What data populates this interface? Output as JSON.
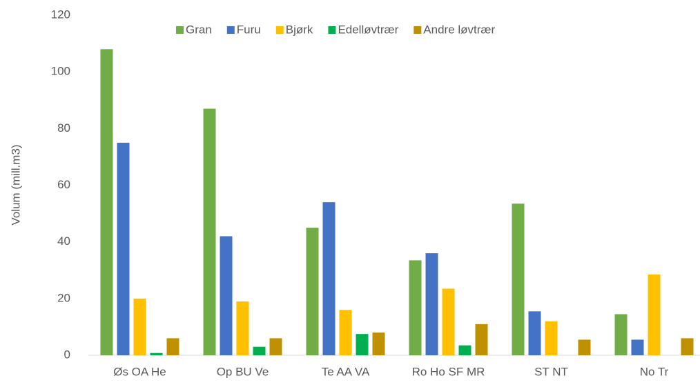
{
  "chart_data": {
    "type": "bar",
    "categories": [
      "Øs OA He",
      "Op BU Ve",
      "Te AA VA",
      "Ro Ho SF MR",
      "ST NT",
      "No Tr"
    ],
    "series": [
      {
        "name": "Gran",
        "color": "#70ad47",
        "values": [
          108,
          87,
          45,
          33.5,
          53.5,
          14.5
        ]
      },
      {
        "name": "Furu",
        "color": "#4472c4",
        "values": [
          75,
          42,
          54,
          36,
          15.5,
          5.5
        ]
      },
      {
        "name": "Bjørk",
        "color": "#ffc000",
        "values": [
          20,
          19,
          16,
          23.5,
          12,
          28.5
        ]
      },
      {
        "name": "Edelløvtrær",
        "color": "#00b050",
        "values": [
          0.8,
          3,
          7.5,
          3.5,
          0,
          0
        ]
      },
      {
        "name": "Andre løvtrær",
        "color": "#bf9000",
        "values": [
          6,
          6,
          8,
          11,
          5.5,
          6
        ]
      }
    ],
    "y_label": "Volum (mill.m3)",
    "ylim": [
      0,
      120
    ],
    "yticks": [
      0,
      20,
      40,
      60,
      80,
      100,
      120
    ],
    "grid": false,
    "legend": "top"
  }
}
